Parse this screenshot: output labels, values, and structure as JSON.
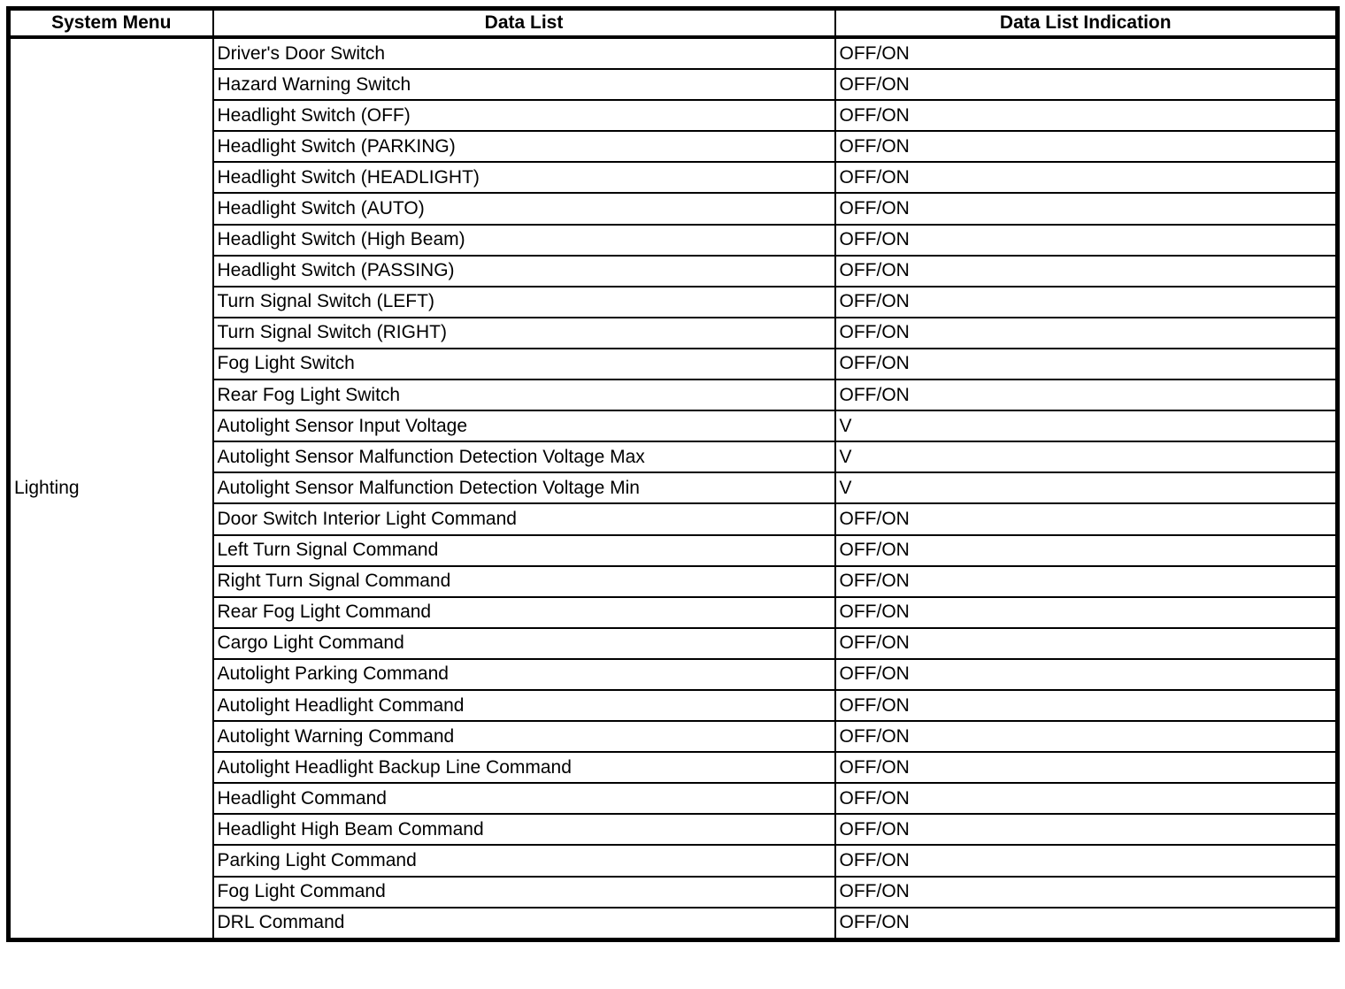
{
  "table": {
    "headers": [
      "System Menu",
      "Data List",
      "Data List Indication"
    ],
    "system_menu": "Lighting",
    "rows": [
      {
        "data_list": "Driver's Door Switch",
        "indication": "OFF/ON"
      },
      {
        "data_list": "Hazard Warning Switch",
        "indication": "OFF/ON"
      },
      {
        "data_list": "Headlight Switch (OFF)",
        "indication": "OFF/ON"
      },
      {
        "data_list": "Headlight Switch (PARKING)",
        "indication": "OFF/ON"
      },
      {
        "data_list": "Headlight Switch (HEADLIGHT)",
        "indication": "OFF/ON"
      },
      {
        "data_list": "Headlight Switch (AUTO)",
        "indication": "OFF/ON"
      },
      {
        "data_list": "Headlight Switch (High Beam)",
        "indication": "OFF/ON"
      },
      {
        "data_list": "Headlight Switch (PASSING)",
        "indication": "OFF/ON"
      },
      {
        "data_list": "Turn Signal Switch (LEFT)",
        "indication": "OFF/ON"
      },
      {
        "data_list": "Turn Signal Switch (RIGHT)",
        "indication": "OFF/ON"
      },
      {
        "data_list": "Fog Light Switch",
        "indication": "OFF/ON"
      },
      {
        "data_list": "Rear Fog Light Switch",
        "indication": "OFF/ON"
      },
      {
        "data_list": "Autolight Sensor Input Voltage",
        "indication": "V"
      },
      {
        "data_list": "Autolight Sensor Malfunction Detection Voltage Max",
        "indication": "V"
      },
      {
        "data_list": "Autolight Sensor Malfunction Detection Voltage Min",
        "indication": "V"
      },
      {
        "data_list": "Door Switch Interior Light Command",
        "indication": "OFF/ON"
      },
      {
        "data_list": "Left Turn Signal Command",
        "indication": "OFF/ON"
      },
      {
        "data_list": "Right Turn Signal Command",
        "indication": "OFF/ON"
      },
      {
        "data_list": "Rear Fog Light Command",
        "indication": "OFF/ON"
      },
      {
        "data_list": "Cargo Light Command",
        "indication": "OFF/ON"
      },
      {
        "data_list": "Autolight Parking Command",
        "indication": "OFF/ON"
      },
      {
        "data_list": "Autolight Headlight Command",
        "indication": "OFF/ON"
      },
      {
        "data_list": "Autolight Warning Command",
        "indication": "OFF/ON"
      },
      {
        "data_list": "Autolight Headlight Backup Line Command",
        "indication": "OFF/ON"
      },
      {
        "data_list": "Headlight Command",
        "indication": "OFF/ON"
      },
      {
        "data_list": "Headlight High Beam Command",
        "indication": "OFF/ON"
      },
      {
        "data_list": "Parking Light Command",
        "indication": "OFF/ON"
      },
      {
        "data_list": "Fog Light Command",
        "indication": "OFF/ON"
      },
      {
        "data_list": "DRL Command",
        "indication": "OFF/ON"
      }
    ],
    "colors": {
      "border": "#000000",
      "background": "#ffffff",
      "text": "#000000"
    }
  }
}
